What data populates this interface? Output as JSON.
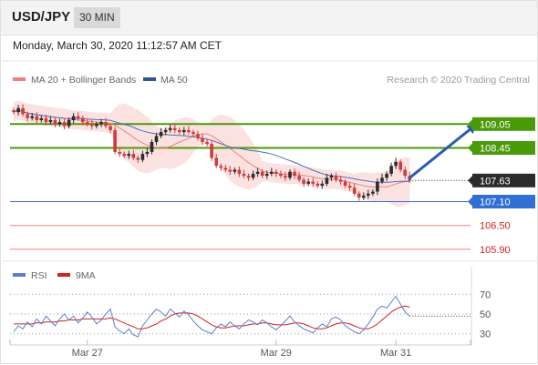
{
  "header": {
    "symbol": "USD/JPY",
    "timeframe": "30 MIN"
  },
  "timestamp": "Monday, March 30, 2020 11:12:57 AM CET",
  "legend": {
    "ma_bb_label": "MA 20 + Bollinger Bands",
    "ma50_label": "MA 50",
    "copyright": "Research © 2020 Trading Central",
    "rsi_label": "RSI",
    "rsi_ma_label": "9MA"
  },
  "colors": {
    "bollinger_fill": "#fbdcdc",
    "ma20": "#f08080",
    "ma50": "#4a6fb5",
    "green_level": "#4a9a0a",
    "blue_level": "#2f6fd6",
    "red_level": "#f28080",
    "candle_up": "#2b2b2b",
    "candle_down": "#d13b3b",
    "arrow": "#2a5ea8",
    "rsi_line": "#5b7fd0",
    "rsi_ma_line": "#d32020"
  },
  "chart_data": [
    {
      "type": "candlestick",
      "ylim": [
        105.6,
        109.95
      ],
      "x_ticks": [
        {
          "label": "Mar 27",
          "index": 16
        },
        {
          "label": "Mar 29",
          "index": 57
        },
        {
          "label": "Mar 31",
          "index": 83
        }
      ],
      "current_price": "107.63",
      "levels": [
        {
          "label": "109.05",
          "value": 109.05,
          "style": "green"
        },
        {
          "label": "108.45",
          "value": 108.45,
          "style": "green"
        },
        {
          "label": "107.10",
          "value": 107.1,
          "style": "blue"
        },
        {
          "label": "106.50",
          "value": 106.5,
          "style": "red"
        },
        {
          "label": "105.90",
          "value": 105.9,
          "style": "red"
        }
      ],
      "projection": {
        "from": {
          "index": 86,
          "value": 107.7
        },
        "to": {
          "index": 100,
          "value": 109.0
        }
      },
      "close": [
        109.35,
        109.45,
        109.3,
        109.2,
        109.25,
        109.15,
        109.2,
        109.1,
        109.15,
        109.05,
        109.1,
        109.0,
        109.15,
        109.25,
        109.2,
        109.1,
        109.05,
        109.0,
        109.05,
        109.1,
        109.0,
        108.9,
        108.35,
        108.3,
        108.25,
        108.3,
        108.2,
        108.15,
        108.3,
        108.35,
        108.6,
        108.75,
        108.85,
        108.9,
        108.95,
        108.9,
        108.85,
        108.9,
        108.85,
        108.8,
        108.7,
        108.6,
        108.55,
        108.2,
        108.0,
        107.95,
        107.9,
        107.85,
        107.9,
        107.8,
        107.75,
        107.7,
        107.8,
        107.85,
        107.75,
        107.8,
        107.85,
        107.8,
        107.75,
        107.7,
        107.85,
        107.75,
        107.65,
        107.55,
        107.6,
        107.55,
        107.5,
        107.55,
        107.7,
        107.75,
        107.65,
        107.6,
        107.5,
        107.45,
        107.3,
        107.2,
        107.25,
        107.3,
        107.35,
        107.6,
        107.7,
        107.8,
        108.0,
        108.1,
        107.9,
        107.75,
        107.63
      ]
    },
    {
      "type": "line",
      "ylim": [
        15,
        85
      ],
      "y_ticks": [
        {
          "label": "70",
          "value": 70
        },
        {
          "label": "50",
          "value": 50
        },
        {
          "label": "30",
          "value": 30
        }
      ],
      "series": [
        {
          "name": "RSI",
          "values": [
            32,
            38,
            35,
            42,
            37,
            45,
            40,
            48,
            43,
            38,
            45,
            50,
            44,
            48,
            41,
            46,
            52,
            47,
            40,
            44,
            50,
            55,
            37,
            33,
            30,
            35,
            29,
            27,
            38,
            44,
            50,
            55,
            52,
            48,
            55,
            51,
            47,
            53,
            49,
            43,
            38,
            34,
            32,
            30,
            36,
            40,
            37,
            42,
            38,
            35,
            40,
            44,
            42,
            39,
            44,
            41,
            37,
            34,
            38,
            43,
            48,
            42,
            38,
            35,
            33,
            31,
            36,
            40,
            37,
            45,
            47,
            44,
            38,
            35,
            32,
            30,
            34,
            40,
            47,
            55,
            58,
            56,
            62,
            68,
            60,
            52,
            48
          ]
        },
        {
          "name": "9MA",
          "values": [
            40,
            40,
            40,
            40,
            40,
            41,
            41,
            42,
            42,
            42,
            43,
            43,
            44,
            44,
            44,
            45,
            45,
            45,
            45,
            45,
            45,
            46,
            45,
            43,
            41,
            39,
            37,
            35,
            35,
            36,
            38,
            40,
            43,
            45,
            48,
            50,
            51,
            51,
            51,
            50,
            48,
            45,
            42,
            39,
            37,
            36,
            36,
            37,
            38,
            38,
            38,
            39,
            40,
            40,
            41,
            41,
            40,
            39,
            39,
            39,
            40,
            41,
            41,
            40,
            38,
            36,
            35,
            35,
            36,
            38,
            40,
            41,
            41,
            40,
            38,
            36,
            35,
            35,
            37,
            40,
            44,
            48,
            52,
            55,
            57,
            58,
            57
          ]
        }
      ]
    }
  ]
}
